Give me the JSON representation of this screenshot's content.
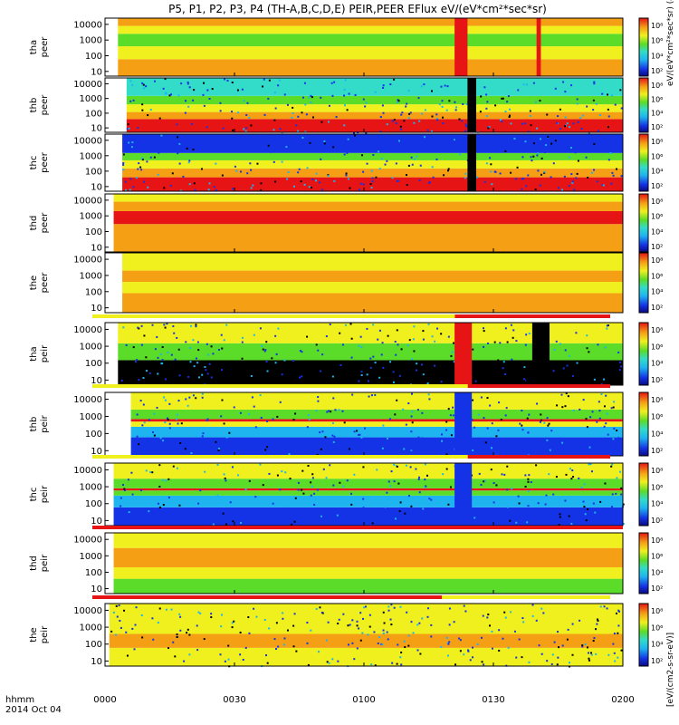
{
  "title": "P5, P1, P2, P3, P4 (TH-A,B,C,D,E) PEIR,PEER EFlux eV/(eV*cm²*sec*sr)",
  "colorbar_unit_label": "[eV/(cm2-s-sr-eV)]",
  "colorbar_unit_repeat": "eV/(eV*cm²*sec*sr) (4)",
  "time_axis": {
    "prefix_line1": "hhmm",
    "prefix_line2": "2014 Oct 04",
    "ticks": [
      "0000",
      "0030",
      "0100",
      "0130",
      "0200"
    ]
  },
  "palette": {
    "black": "#000000",
    "navy": "#0a0a82",
    "blue": "#1432e6",
    "sky": "#1eb4f0",
    "cyan": "#32dcc8",
    "green": "#5adc28",
    "yellow": "#f0f01e",
    "orange": "#f5a014",
    "red": "#e61414",
    "darkred": "#aa0000",
    "white": "#ffffff"
  },
  "chart_data": {
    "type": "heatmap",
    "x_range": [
      "00:00",
      "02:00"
    ],
    "y_scale": "log",
    "y_range_eV": [
      5,
      25000
    ],
    "panels": [
      {
        "id": "tha-peer",
        "label": [
          "tha",
          "peer"
        ],
        "y_ticks": [
          "10000",
          "1000",
          "100",
          "10"
        ],
        "cbar_ticks": [
          "10⁸",
          "10⁶",
          "10⁴",
          "10²"
        ],
        "quality_bar": [],
        "description": "electron energy flux; high flux (red/orange) at low energies, green band near 1 keV, data gaps near 01:21 and 01:40"
      },
      {
        "id": "thb-peer",
        "label": [
          "thb",
          "peer"
        ],
        "y_ticks": [
          "10000",
          "1000",
          "100",
          "10"
        ],
        "cbar_ticks": [
          "10⁸",
          "10⁶",
          "10⁴",
          "10²"
        ],
        "quality_bar": []
      },
      {
        "id": "thc-peer",
        "label": [
          "thc",
          "peer"
        ],
        "y_ticks": [
          "10000",
          "1000",
          "100",
          "10"
        ],
        "cbar_ticks": [
          "10⁸",
          "10⁶",
          "10⁴",
          "10²"
        ],
        "quality_bar": []
      },
      {
        "id": "thd-peer",
        "label": [
          "thd",
          "peer"
        ],
        "y_ticks": [
          "10000",
          "1000",
          "100",
          "10"
        ],
        "cbar_ticks": [
          "10⁸",
          "10⁶",
          "10⁴",
          "10²"
        ],
        "quality_bar": []
      },
      {
        "id": "the-peer",
        "label": [
          "the",
          "peer"
        ],
        "y_ticks": [
          "10000",
          "1000",
          "100",
          "10"
        ],
        "cbar_ticks": [
          "10⁸",
          "10⁶",
          "10⁴",
          "10²"
        ],
        "quality_bar": [
          [
            "00:00",
            "01:24",
            "yellow"
          ],
          [
            "01:24",
            "02:00",
            "red"
          ]
        ]
      },
      {
        "id": "tha-peir",
        "label": [
          "tha",
          "peir"
        ],
        "y_ticks": [
          "10000",
          "1000",
          "100",
          "10"
        ],
        "cbar_ticks": [
          "10⁸",
          "10⁶",
          "10⁴",
          "10²"
        ],
        "quality_bar": [
          [
            "00:00",
            "01:27",
            "yellow"
          ],
          [
            "01:27",
            "02:00",
            "red"
          ]
        ]
      },
      {
        "id": "thb-peir",
        "label": [
          "thb",
          "peir"
        ],
        "y_ticks": [
          "10000",
          "1000",
          "100",
          "10"
        ],
        "cbar_ticks": [
          "10⁸",
          "10⁶",
          "10⁴",
          "10²"
        ],
        "quality_bar": [
          [
            "00:00",
            "01:27",
            "yellow"
          ],
          [
            "01:27",
            "02:00",
            "red"
          ]
        ]
      },
      {
        "id": "thc-peir",
        "label": [
          "thc",
          "peir"
        ],
        "y_ticks": [
          "10000",
          "1000",
          "100",
          "10"
        ],
        "cbar_ticks": [
          "10⁸",
          "10⁶",
          "10⁴",
          "10²"
        ],
        "quality_bar": [
          [
            "00:00",
            "02:00",
            "red"
          ]
        ]
      },
      {
        "id": "thd-peir",
        "label": [
          "thd",
          "peir"
        ],
        "y_ticks": [
          "10000",
          "1000",
          "100",
          "10"
        ],
        "cbar_ticks": [
          "10⁸",
          "10⁶",
          "10⁴",
          "10²"
        ],
        "quality_bar": [
          [
            "00:00",
            "01:21",
            "red"
          ],
          [
            "01:21",
            "02:00",
            "yellow"
          ]
        ]
      },
      {
        "id": "the-peir",
        "label": [
          "the",
          "peir"
        ],
        "y_ticks": [
          "10000",
          "1000",
          "100",
          "10"
        ],
        "cbar_ticks": [
          "10⁸",
          "10⁶",
          "10⁴",
          "10²"
        ],
        "quality_bar": []
      }
    ]
  }
}
